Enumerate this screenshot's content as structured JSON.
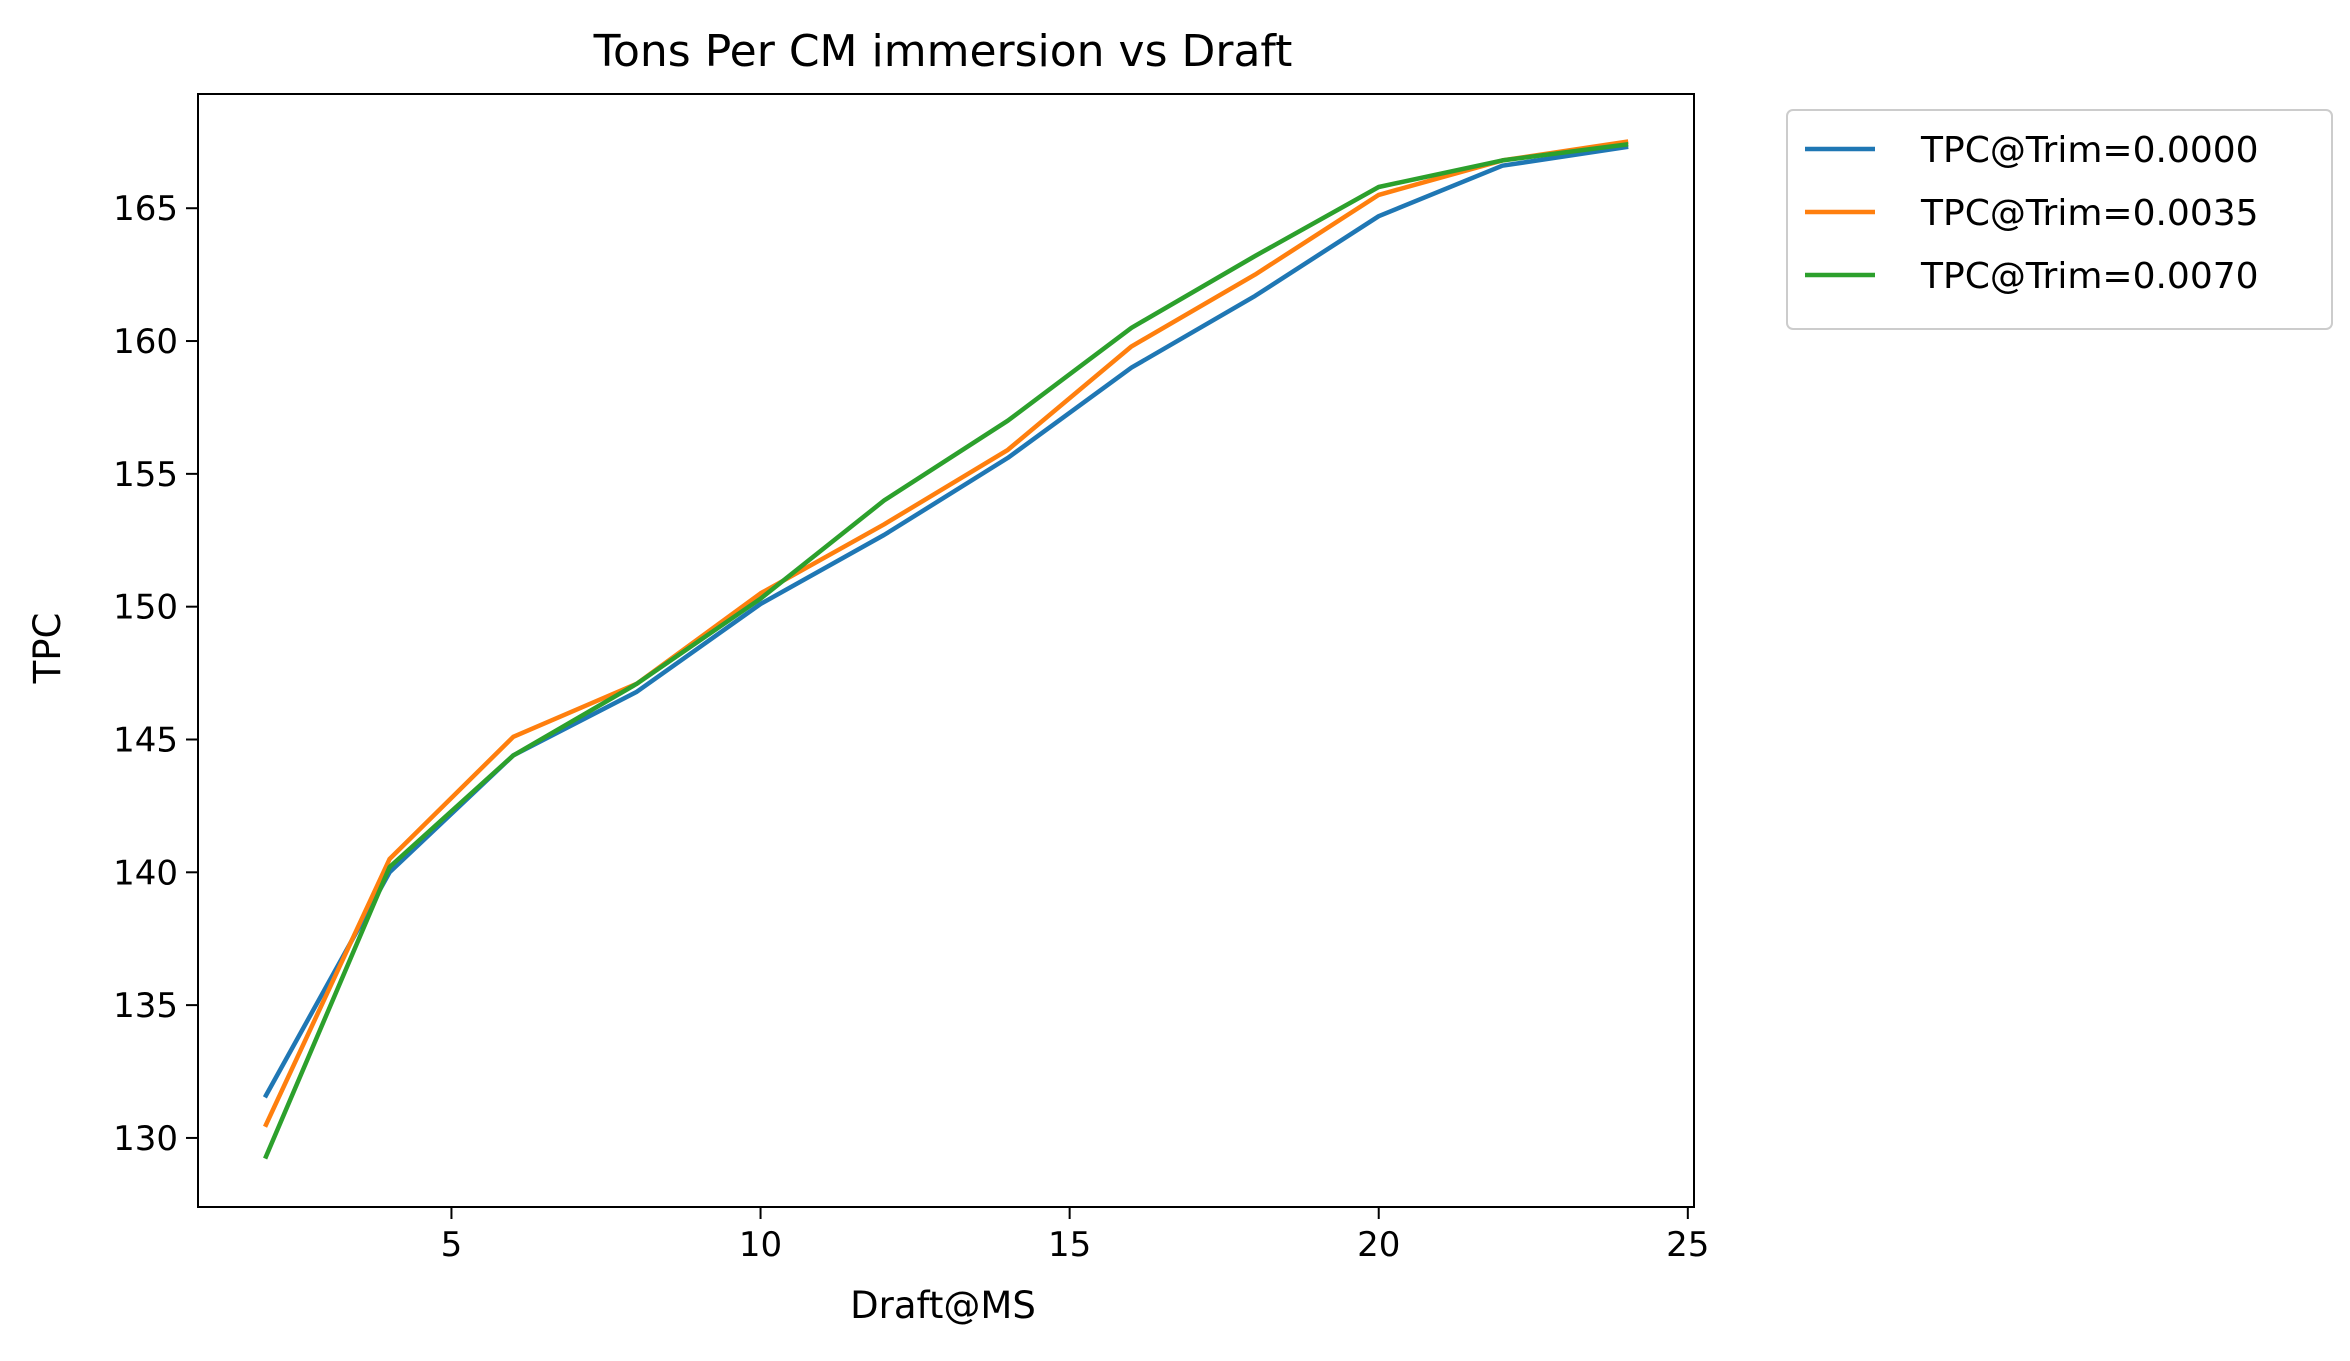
{
  "chart_data": {
    "type": "line",
    "title": "Tons Per CM immersion vs Draft",
    "xlabel": "Draft@MS",
    "ylabel": "TPC",
    "xlim": [
      0.9,
      25.1
    ],
    "ylim": [
      127.4,
      169.3
    ],
    "xticks": [
      5,
      10,
      15,
      20,
      25
    ],
    "yticks": [
      130,
      135,
      140,
      145,
      150,
      155,
      160,
      165
    ],
    "grid": false,
    "legend_position": "outside-right-top",
    "x": [
      2,
      4,
      6,
      8,
      10,
      12,
      14,
      16,
      18,
      20,
      22,
      24
    ],
    "series": [
      {
        "name": "TPC@Trim=0.0000",
        "color": "#1f77b4",
        "values": [
          131.6,
          140.0,
          144.4,
          146.8,
          150.1,
          152.7,
          155.6,
          159.0,
          161.7,
          164.7,
          166.6,
          167.3
        ]
      },
      {
        "name": "TPC@Trim=0.0035",
        "color": "#ff7f0e",
        "values": [
          130.5,
          140.5,
          145.1,
          147.1,
          150.5,
          153.1,
          155.9,
          159.8,
          162.5,
          165.5,
          166.8,
          167.5
        ]
      },
      {
        "name": "TPC@Trim=0.0070",
        "color": "#2ca02c",
        "values": [
          129.3,
          140.2,
          144.4,
          147.1,
          150.3,
          154.0,
          157.0,
          160.5,
          163.2,
          165.8,
          166.8,
          167.4
        ]
      }
    ]
  }
}
